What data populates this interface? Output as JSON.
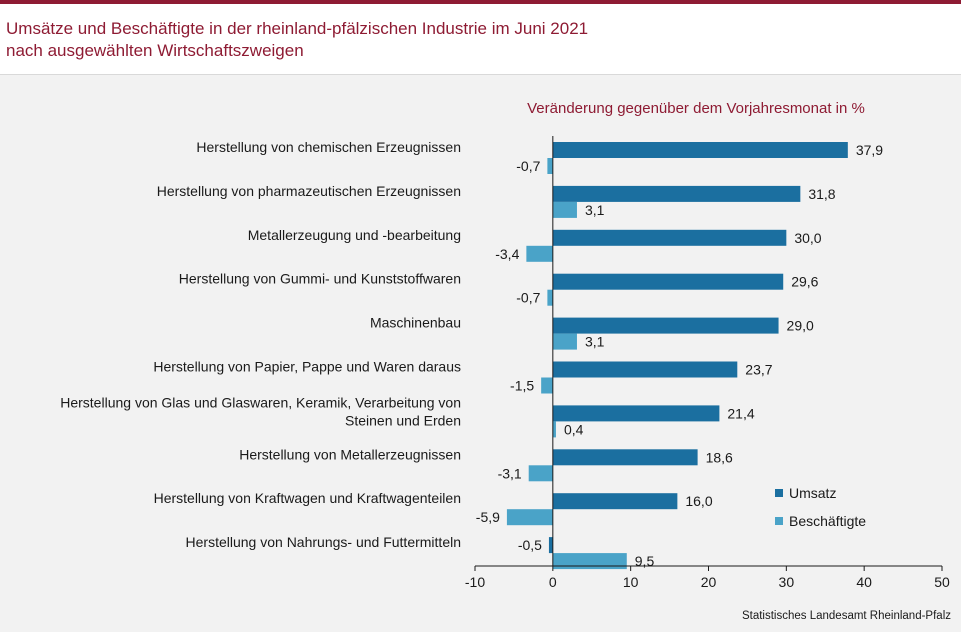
{
  "title_line1": "Umsätze und Beschäftigte in der rheinland-pfälzischen Industrie im Juni 2021",
  "title_line2": "nach ausgewählten Wirtschaftszweigen",
  "source": "Statistisches Landesamt Rheinland-Pfalz",
  "colors": {
    "title": "#8e1b33",
    "umsatz": "#1b6fa0",
    "beschaeftigte": "#4aa3c8",
    "panel": "#f2f2f2"
  },
  "chart_data": {
    "type": "bar",
    "orientation": "horizontal",
    "subtitle": "Veränderung gegenüber dem Vorjahresmonat in %",
    "xlim": [
      -10,
      50
    ],
    "xticks": [
      -10,
      0,
      10,
      20,
      30,
      40,
      50
    ],
    "grid": false,
    "legend_position": "bottom-right",
    "categories": [
      [
        "Herstellung von chemischen Erzeugnissen"
      ],
      [
        "Herstellung von pharmazeutischen Erzeugnissen"
      ],
      [
        "Metallerzeugung und -bearbeitung"
      ],
      [
        "Herstellung von Gummi- und Kunststoffwaren"
      ],
      [
        "Maschinenbau"
      ],
      [
        "Herstellung von Papier, Pappe und Waren daraus"
      ],
      [
        "Herstellung von Glas und Glaswaren, Keramik, Verarbeitung von",
        "Steinen und Erden"
      ],
      [
        "Herstellung von Metallerzeugnissen"
      ],
      [
        "Herstellung von Kraftwagen und Kraftwagenteilen"
      ],
      [
        "Herstellung von Nahrungs- und Futtermitteln"
      ]
    ],
    "series": [
      {
        "name": "Umsatz",
        "values": [
          37.9,
          31.8,
          30.0,
          29.6,
          29.0,
          23.7,
          21.4,
          18.6,
          16.0,
          -0.5
        ],
        "labels": [
          "37,9",
          "31,8",
          "30,0",
          "29,6",
          "29,0",
          "23,7",
          "21,4",
          "18,6",
          "16,0",
          "-0,5"
        ]
      },
      {
        "name": "Beschäftigte",
        "values": [
          -0.7,
          3.1,
          -3.4,
          -0.7,
          3.1,
          -1.5,
          0.4,
          -3.1,
          -5.9,
          9.5
        ],
        "labels": [
          "-0,7",
          "3,1",
          "-3,4",
          "-0,7",
          "3,1",
          "-1,5",
          "0,4",
          "-3,1",
          "-5,9",
          "9,5"
        ]
      }
    ]
  }
}
